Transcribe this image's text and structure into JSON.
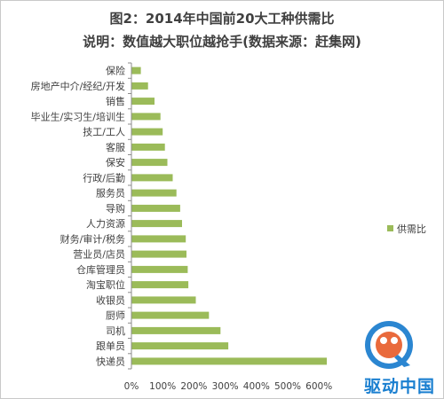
{
  "chart_data": {
    "type": "bar",
    "orientation": "horizontal",
    "title": "图2：2014年中国前20大工种供需比",
    "subtitle": "说明：数值越大职位越抢手(数据来源：赶集网)",
    "categories": [
      "保险",
      "房地产中介/经纪/开发",
      "销售",
      "毕业生/实习生/培训生",
      "技工/工人",
      "客服",
      "保安",
      "行政/后勤",
      "服务员",
      "导购",
      "人力资源",
      "财务/审计/税务",
      "营业员/店员",
      "仓库管理员",
      "淘宝职位",
      "收银员",
      "厨师",
      "司机",
      "跟单员",
      "快递员"
    ],
    "series": [
      {
        "name": "供需比",
        "values": [
          0.3,
          0.53,
          0.74,
          0.93,
          1.0,
          1.07,
          1.15,
          1.32,
          1.44,
          1.56,
          1.62,
          1.74,
          1.76,
          1.8,
          1.82,
          2.06,
          2.48,
          2.85,
          3.1,
          6.25
        ],
        "color": "#9bbb59"
      }
    ],
    "x_ticks": [
      "0%",
      "100%",
      "200%",
      "300%",
      "400%",
      "500%",
      "600%"
    ],
    "xlim": [
      0,
      6.5
    ],
    "legend_position": "right",
    "grid": false
  },
  "watermark": {
    "text": "驱动中国"
  }
}
